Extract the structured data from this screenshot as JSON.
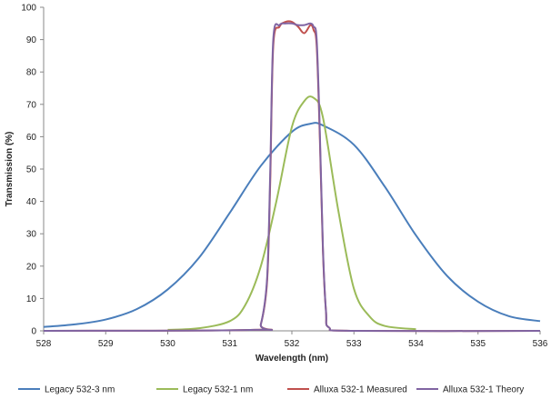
{
  "chart_data": {
    "type": "line",
    "xlabel": "Wavelength (nm)",
    "ylabel": "Transmission (%)",
    "xlim": [
      528,
      536
    ],
    "ylim": [
      0,
      100
    ],
    "x_ticks": [
      528,
      529,
      530,
      531,
      532,
      533,
      534,
      535,
      536
    ],
    "y_ticks": [
      0,
      10,
      20,
      30,
      40,
      50,
      60,
      70,
      80,
      90,
      100
    ],
    "grid": false,
    "legend_position": "bottom",
    "series": [
      {
        "name": "Legacy 532-3 nm",
        "color": "#4a7ebb",
        "x": [
          528,
          528.5,
          529,
          529.5,
          530,
          530.5,
          531,
          531.5,
          532,
          532.3,
          532.5,
          533,
          533.5,
          534,
          534.5,
          535,
          535.5,
          536
        ],
        "y": [
          1.2,
          2.0,
          3.5,
          6.7,
          12.8,
          22.5,
          36.5,
          51.0,
          61.5,
          64.0,
          63.5,
          57.5,
          44.5,
          29.5,
          17.0,
          9.0,
          4.5,
          3.0
        ]
      },
      {
        "name": "Legacy 532-1 nm",
        "color": "#9bbb59",
        "x": [
          530,
          530.5,
          531,
          531.25,
          531.5,
          531.75,
          532,
          532.2,
          532.35,
          532.5,
          532.75,
          533,
          533.25,
          533.5,
          534
        ],
        "y": [
          0.3,
          0.8,
          3.0,
          8.0,
          20.0,
          40.0,
          63.0,
          71.0,
          72.0,
          66.0,
          37.0,
          13.0,
          4.5,
          1.5,
          0.5
        ]
      },
      {
        "name": "Alluxa 532-1 Measured",
        "color": "#c0504d",
        "x": [
          528,
          531.4,
          531.5,
          531.6,
          531.65,
          531.7,
          531.8,
          531.9,
          532,
          532.1,
          532.2,
          532.3,
          532.35,
          532.4,
          532.45,
          532.5,
          532.55,
          532.6,
          533,
          536
        ],
        "y": [
          0,
          0.3,
          2.0,
          15.0,
          45.0,
          88.0,
          94.0,
          95.5,
          95.5,
          94.0,
          92.0,
          94.5,
          93.0,
          88.0,
          60.0,
          25.0,
          6.0,
          1.0,
          0,
          0
        ]
      },
      {
        "name": "Alluxa 532-1 Theory",
        "color": "#8064a2",
        "x": [
          528,
          531.4,
          531.5,
          531.6,
          531.65,
          531.7,
          531.8,
          531.9,
          532,
          532.1,
          532.2,
          532.3,
          532.35,
          532.4,
          532.45,
          532.5,
          532.55,
          532.6,
          533,
          536
        ],
        "y": [
          0,
          0.3,
          2.0,
          16.0,
          48.0,
          90.0,
          94.5,
          95.0,
          95.0,
          94.5,
          94.5,
          95.0,
          94.0,
          90.0,
          62.0,
          26.0,
          6.0,
          1.0,
          0,
          0
        ]
      }
    ]
  }
}
